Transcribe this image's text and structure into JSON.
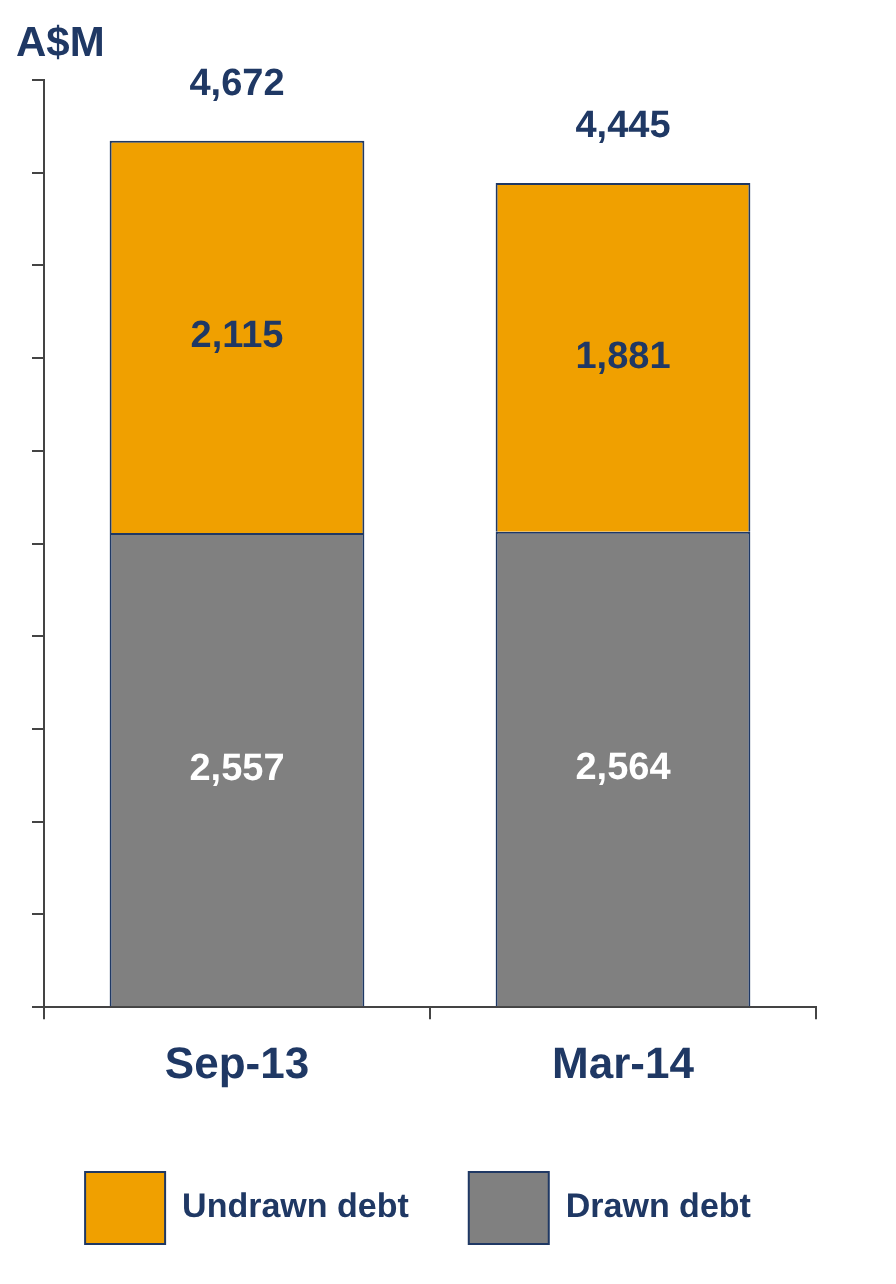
{
  "chart_data": {
    "type": "bar",
    "ylabel": "A$M",
    "categories": [
      "Sep-13",
      "Mar-14"
    ],
    "stacked": true,
    "totals": [
      "4,672",
      "4,445"
    ],
    "tick_labels": "x",
    "grid": false,
    "legend": "bottom",
    "series": [
      {
        "name": "Drawn debt",
        "color": "#808080",
        "values": [
          2557,
          2564
        ],
        "value_labels": [
          "2,557",
          "2,564"
        ]
      },
      {
        "name": "Undrawn debt",
        "color": "#f0a000",
        "values": [
          2115,
          1881
        ],
        "value_labels": [
          "2,115",
          "1,881"
        ]
      }
    ]
  }
}
